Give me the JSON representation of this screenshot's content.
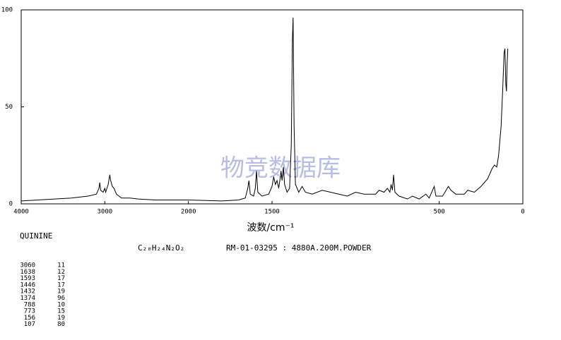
{
  "chart_data": {
    "type": "line",
    "x_label": "波数/cm⁻¹",
    "watermark": "物竞数据库",
    "xlim": [
      4000,
      0
    ],
    "xticks": [
      4000,
      3000,
      2000,
      1500,
      500,
      0
    ],
    "ylim": [
      0,
      100
    ],
    "yticks": [
      0,
      50,
      100
    ],
    "series": [
      {
        "color": "#000000",
        "x": [
          4000,
          3800,
          3600,
          3400,
          3200,
          3100,
          3070,
          3060,
          3050,
          3020,
          3000,
          2990,
          2960,
          2940,
          2930,
          2910,
          2890,
          2860,
          2800,
          2700,
          2600,
          2400,
          2200,
          2000,
          1800,
          1700,
          1660,
          1645,
          1638,
          1630,
          1610,
          1600,
          1593,
          1585,
          1560,
          1520,
          1500,
          1490,
          1480,
          1470,
          1460,
          1450,
          1446,
          1440,
          1432,
          1425,
          1410,
          1395,
          1385,
          1378,
          1374,
          1368,
          1360,
          1340,
          1320,
          1300,
          1260,
          1200,
          1150,
          1100,
          1050,
          1000,
          950,
          880,
          860,
          830,
          810,
          795,
          788,
          780,
          773,
          765,
          740,
          690,
          660,
          620,
          580,
          560,
          530,
          520,
          480,
          445,
          430,
          400,
          350,
          330,
          290,
          250,
          210,
          185,
          170,
          156,
          145,
          130,
          120,
          112,
          107,
          102,
          98,
          94,
          90
        ],
        "values": [
          1.5,
          2,
          2.5,
          3,
          4,
          5,
          8,
          11,
          7,
          6,
          8,
          6,
          10,
          15,
          12,
          9,
          8,
          5,
          3,
          3,
          2.5,
          2,
          2,
          2,
          1.5,
          2,
          3,
          8,
          12,
          5,
          4,
          8,
          17,
          6,
          4,
          5,
          9,
          14,
          10,
          12,
          8,
          14,
          17,
          12,
          19,
          10,
          6,
          8,
          30,
          85,
          96,
          40,
          10,
          6,
          9,
          6,
          5,
          7,
          6,
          5,
          4,
          6,
          5,
          5,
          7,
          6,
          8,
          6,
          10,
          7,
          15,
          6,
          4,
          2.5,
          4,
          2.5,
          5,
          3,
          9,
          4,
          4,
          9,
          7,
          5,
          5,
          7,
          6,
          9,
          13,
          18,
          20,
          19,
          25,
          40,
          60,
          78,
          80,
          62,
          58,
          72,
          80
        ]
      }
    ]
  },
  "sample": {
    "name": "QUININE",
    "formula": "C₂₀H₂₄N₂O₂",
    "info": "RM-01-03295 : 4880A.200M.POWDER"
  },
  "peaks": [
    [
      3060,
      11
    ],
    [
      1638,
      12
    ],
    [
      1593,
      17
    ],
    [
      1446,
      17
    ],
    [
      1432,
      19
    ],
    [
      1374,
      96
    ],
    [
      788,
      10
    ],
    [
      773,
      15
    ],
    [
      156,
      19
    ],
    [
      107,
      80
    ]
  ]
}
